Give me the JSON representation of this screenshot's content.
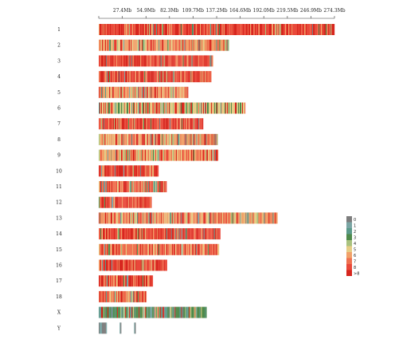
{
  "chart_data": {
    "type": "heatmap",
    "x_unit": "Mb",
    "x_ticks": [
      {
        "value": 27.4,
        "label": "27.4Mb"
      },
      {
        "value": 54.9,
        "label": "54.9Mb"
      },
      {
        "value": 82.3,
        "label": "82.3Mb"
      },
      {
        "value": 109.7,
        "label": "109.7Mb"
      },
      {
        "value": 137.2,
        "label": "137.2Mb"
      },
      {
        "value": 164.6,
        "label": "164.6Mb"
      },
      {
        "value": 192.0,
        "label": "192.0Mb"
      },
      {
        "value": 219.5,
        "label": "219.5Mb"
      },
      {
        "value": 246.9,
        "label": "246.9Mb"
      },
      {
        "value": 274.3,
        "label": "274.3Mb"
      }
    ],
    "x_range": [
      0,
      274.3
    ],
    "chromosomes": [
      {
        "name": "1",
        "length_mb": 274.3,
        "dominant": 8
      },
      {
        "name": "2",
        "length_mb": 151.5,
        "dominant": 6
      },
      {
        "name": "3",
        "length_mb": 133.0,
        "dominant": 8
      },
      {
        "name": "4",
        "length_mb": 131.0,
        "dominant": 8
      },
      {
        "name": "5",
        "length_mb": 104.0,
        "dominant": 6
      },
      {
        "name": "6",
        "length_mb": 170.5,
        "dominant": 5
      },
      {
        "name": "7",
        "length_mb": 121.5,
        "dominant": 8
      },
      {
        "name": "8",
        "length_mb": 138.5,
        "dominant": 6
      },
      {
        "name": "9",
        "length_mb": 139.0,
        "dominant": 6
      },
      {
        "name": "10",
        "length_mb": 69.5,
        "dominant": 8
      },
      {
        "name": "11",
        "length_mb": 79.0,
        "dominant": 7
      },
      {
        "name": "12",
        "length_mb": 61.5,
        "dominant": 8
      },
      {
        "name": "13",
        "length_mb": 208.0,
        "dominant": 6
      },
      {
        "name": "14",
        "length_mb": 141.5,
        "dominant": 8
      },
      {
        "name": "15",
        "length_mb": 140.0,
        "dominant": 7
      },
      {
        "name": "16",
        "length_mb": 79.5,
        "dominant": 8
      },
      {
        "name": "17",
        "length_mb": 63.0,
        "dominant": 8
      },
      {
        "name": "18",
        "length_mb": 55.5,
        "dominant": 7
      },
      {
        "name": "X",
        "length_mb": 125.5,
        "dominant": 3
      },
      {
        "name": "Y",
        "length_mb": 43.0,
        "dominant": 1
      }
    ],
    "legend": {
      "labels": [
        "0",
        "1",
        "2",
        "3",
        "4",
        "5",
        "6",
        "7",
        "8",
        ">8"
      ],
      "colors": [
        "#7d7d7d",
        "#7aa5a4",
        "#5b9a8a",
        "#4f8a4b",
        "#a9c27f",
        "#e6cd86",
        "#f1a169",
        "#ef7150",
        "#e9493a",
        "#d7261e"
      ]
    },
    "grid": false
  }
}
